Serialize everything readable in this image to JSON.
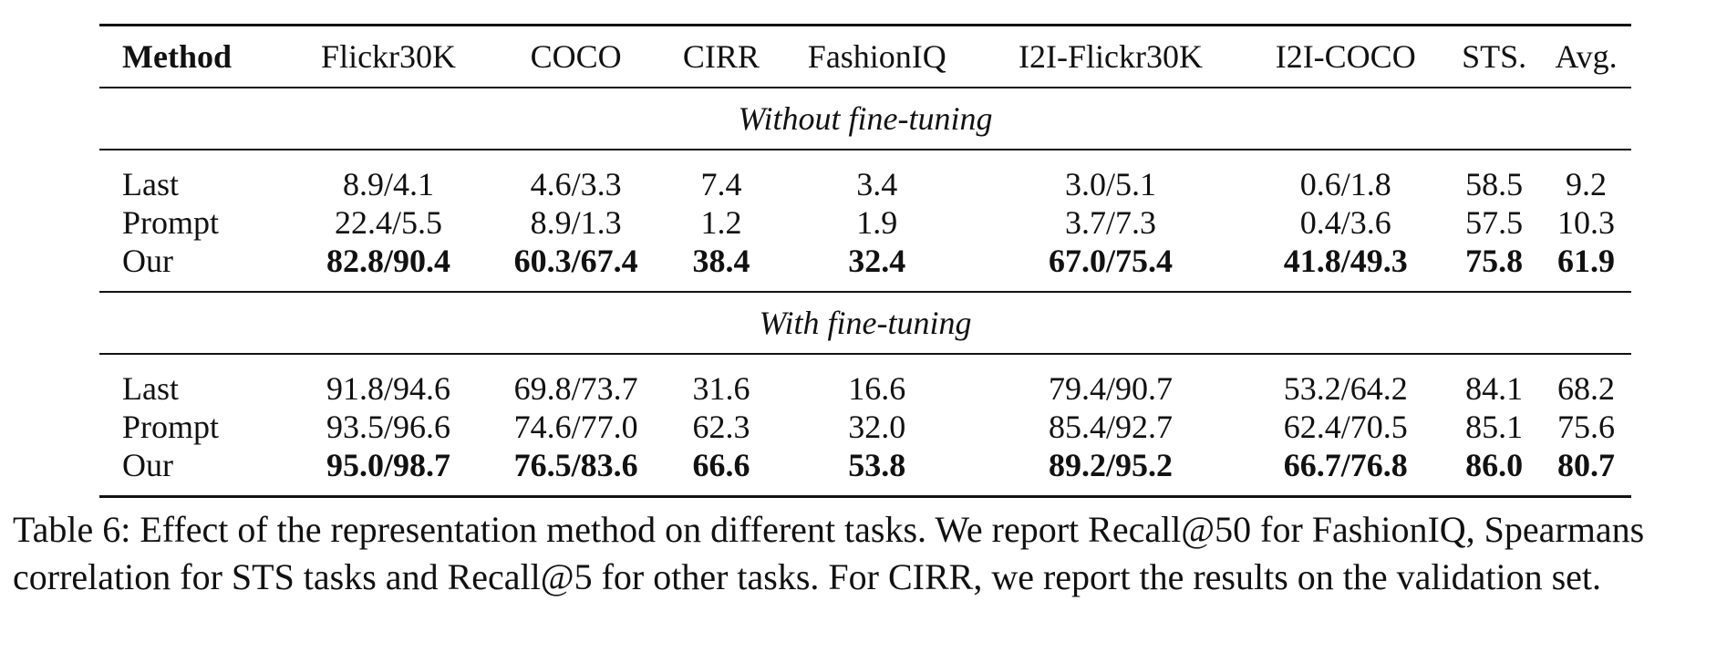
{
  "table": {
    "columns": [
      "Method",
      "Flickr30K",
      "COCO",
      "CIRR",
      "FashionIQ",
      "I2I-Flickr30K",
      "I2I-COCO",
      "STS.",
      "Avg."
    ],
    "sections": [
      {
        "title": "Without fine-tuning",
        "rows": [
          {
            "method": "Last",
            "values": [
              "8.9/4.1",
              "4.6/3.3",
              "7.4",
              "3.4",
              "3.0/5.1",
              "0.6/1.8",
              "58.5",
              "9.2"
            ],
            "bold": false
          },
          {
            "method": "Prompt",
            "values": [
              "22.4/5.5",
              "8.9/1.3",
              "1.2",
              "1.9",
              "3.7/7.3",
              "0.4/3.6",
              "57.5",
              "10.3"
            ],
            "bold": false
          },
          {
            "method": "Our",
            "values": [
              "82.8/90.4",
              "60.3/67.4",
              "38.4",
              "32.4",
              "67.0/75.4",
              "41.8/49.3",
              "75.8",
              "61.9"
            ],
            "bold": true
          }
        ]
      },
      {
        "title": "With fine-tuning",
        "rows": [
          {
            "method": "Last",
            "values": [
              "91.8/94.6",
              "69.8/73.7",
              "31.6",
              "16.6",
              "79.4/90.7",
              "53.2/64.2",
              "84.1",
              "68.2"
            ],
            "bold": false
          },
          {
            "method": "Prompt",
            "values": [
              "93.5/96.6",
              "74.6/77.0",
              "62.3",
              "32.0",
              "85.4/92.7",
              "62.4/70.5",
              "85.1",
              "75.6"
            ],
            "bold": false
          },
          {
            "method": "Our",
            "values": [
              "95.0/98.7",
              "76.5/83.6",
              "66.6",
              "53.8",
              "89.2/95.2",
              "66.7/76.8",
              "86.0",
              "80.7"
            ],
            "bold": true
          }
        ]
      }
    ]
  },
  "caption": "Table 6: Effect of the representation method on different tasks. We report Recall@50 for FashionIQ, Spearmans correlation for STS tasks and Recall@5 for other tasks. For CIRR, we report the results on the validation set."
}
